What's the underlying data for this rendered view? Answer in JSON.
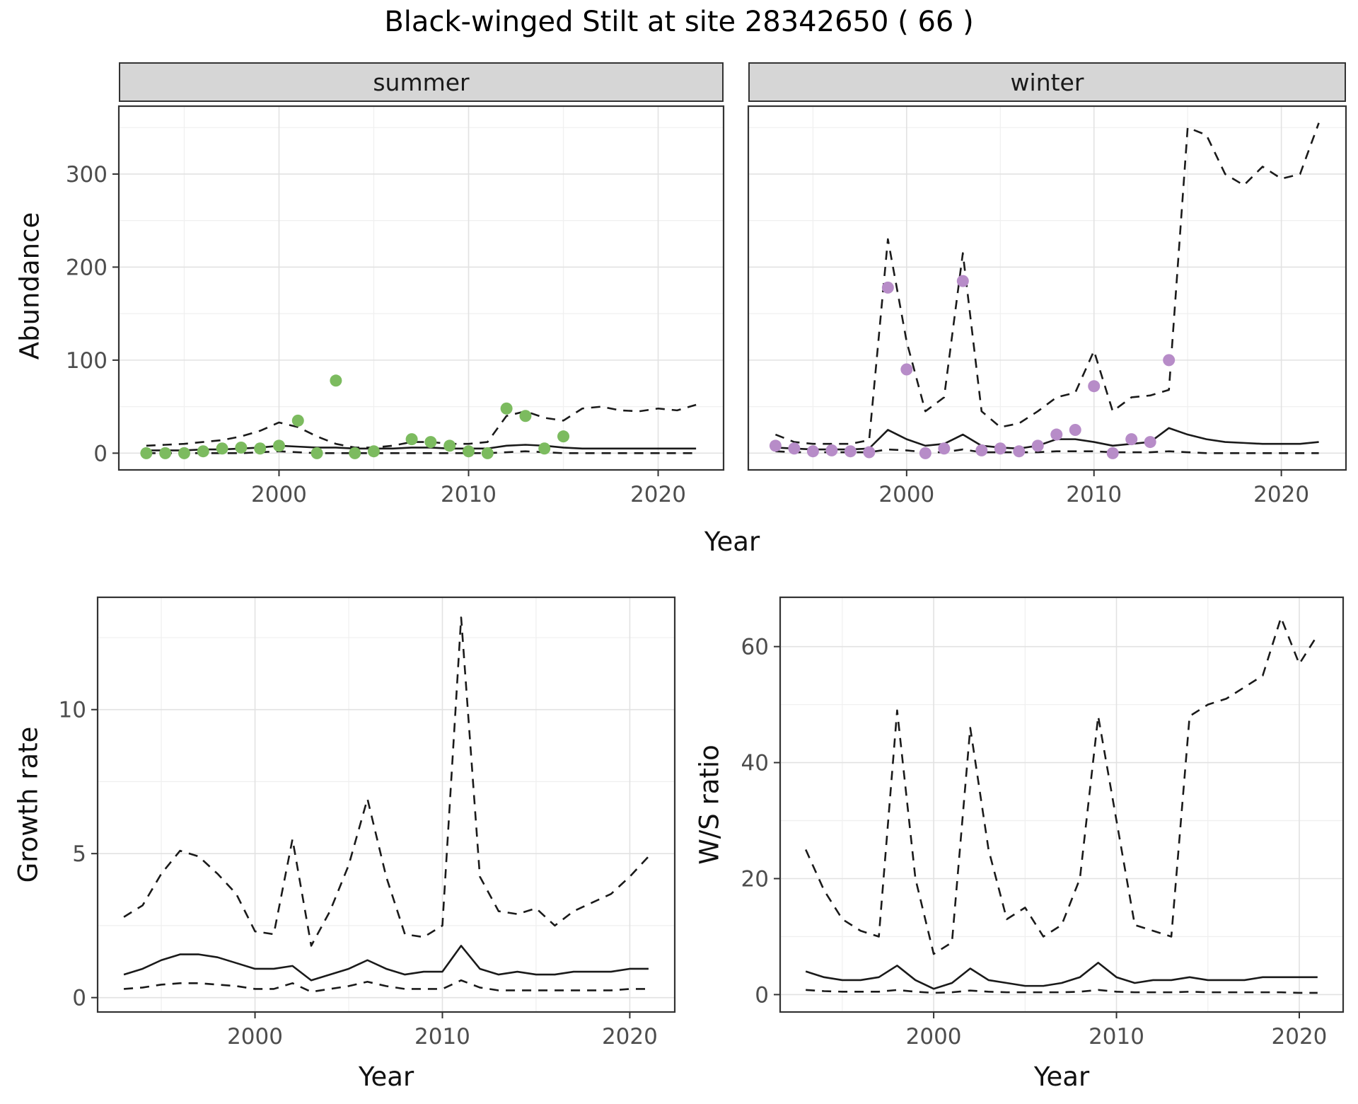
{
  "title": "Black-winged Stilt at site 28342650 ( 66 )",
  "colors": {
    "summer_point": "#7CBB5F",
    "winter_point": "#B78CC8",
    "line": "#1a1a1a",
    "grid_major": "#e2e2e2",
    "grid_minor": "#f0f0f0",
    "panel_border": "#333333",
    "tick_text": "#4d4d4d",
    "strip_bg": "#d6d6d6"
  },
  "chart_data": [
    {
      "id": "summer",
      "type": "line",
      "facet_label": "summer",
      "xlabel": "Year",
      "ylabel": "Abundance",
      "x_range": [
        1991.55,
        2023.45
      ],
      "y_range": [
        -18,
        373
      ],
      "x_ticks": [
        2000,
        2010,
        2020
      ],
      "x_minor": [
        1995,
        2005,
        2015
      ],
      "y_ticks": [
        0,
        100,
        200,
        300
      ],
      "y_minor": [
        50,
        150,
        250,
        350
      ],
      "show_y_tick_labels": true,
      "years": [
        1993,
        1994,
        1995,
        1996,
        1997,
        1998,
        1999,
        2000,
        2001,
        2002,
        2003,
        2004,
        2005,
        2006,
        2007,
        2008,
        2009,
        2010,
        2011,
        2012,
        2013,
        2014,
        2015,
        2016,
        2017,
        2018,
        2019,
        2020,
        2021,
        2022
      ],
      "series": [
        {
          "name": "median",
          "style": "solid",
          "values": [
            3,
            3,
            3,
            4,
            4,
            5,
            6,
            8,
            7,
            6,
            6,
            5,
            5,
            5,
            6,
            6,
            5,
            5,
            5,
            8,
            9,
            8,
            6,
            5,
            5,
            5,
            5,
            5,
            5,
            5
          ]
        },
        {
          "name": "upper95",
          "style": "dashed",
          "values": [
            8,
            9,
            10,
            12,
            14,
            18,
            24,
            33,
            28,
            18,
            10,
            6,
            6,
            8,
            12,
            12,
            10,
            10,
            12,
            40,
            45,
            38,
            35,
            48,
            50,
            46,
            45,
            48,
            46,
            52
          ]
        },
        {
          "name": "lower95",
          "style": "dashed",
          "values": [
            0,
            0,
            0,
            0,
            0,
            0,
            1,
            2,
            1,
            0,
            0,
            0,
            0,
            0,
            0,
            0,
            0,
            0,
            0,
            1,
            2,
            1,
            0,
            0,
            0,
            0,
            0,
            0,
            0,
            0
          ]
        }
      ],
      "points": {
        "color_key": "summer_point",
        "x": [
          1993,
          1994,
          1995,
          1996,
          1997,
          1998,
          1999,
          2000,
          2001,
          2002,
          2003,
          2004,
          2005,
          2007,
          2008,
          2009,
          2010,
          2011,
          2012,
          2013,
          2014,
          2015
        ],
        "y": [
          0,
          0,
          0,
          2,
          5,
          6,
          5,
          8,
          35,
          0,
          78,
          0,
          2,
          15,
          12,
          8,
          2,
          0,
          48,
          40,
          5,
          18
        ]
      }
    },
    {
      "id": "winter",
      "type": "line",
      "facet_label": "winter",
      "xlabel": "Year",
      "ylabel": "Abundance",
      "x_range": [
        1991.55,
        2023.45
      ],
      "y_range": [
        -18,
        373
      ],
      "x_ticks": [
        2000,
        2010,
        2020
      ],
      "x_minor": [
        1995,
        2005,
        2015
      ],
      "y_ticks": [
        0,
        100,
        200,
        300
      ],
      "y_minor": [
        50,
        150,
        250,
        350
      ],
      "show_y_tick_labels": false,
      "years": [
        1993,
        1994,
        1995,
        1996,
        1997,
        1998,
        1999,
        2000,
        2001,
        2002,
        2003,
        2004,
        2005,
        2006,
        2007,
        2008,
        2009,
        2010,
        2011,
        2012,
        2013,
        2014,
        2015,
        2016,
        2017,
        2018,
        2019,
        2020,
        2021,
        2022
      ],
      "series": [
        {
          "name": "median",
          "style": "solid",
          "values": [
            6,
            5,
            4,
            4,
            4,
            5,
            25,
            15,
            8,
            10,
            20,
            8,
            6,
            5,
            8,
            15,
            15,
            12,
            8,
            10,
            12,
            27,
            20,
            15,
            12,
            11,
            10,
            10,
            10,
            12
          ]
        },
        {
          "name": "upper95",
          "style": "dashed",
          "values": [
            20,
            12,
            10,
            10,
            10,
            14,
            230,
            120,
            45,
            60,
            215,
            45,
            28,
            32,
            45,
            60,
            65,
            110,
            45,
            60,
            62,
            68,
            350,
            342,
            300,
            288,
            308,
            295,
            300,
            355
          ]
        },
        {
          "name": "lower95",
          "style": "dashed",
          "values": [
            2,
            1,
            1,
            1,
            1,
            1,
            4,
            3,
            1,
            1,
            4,
            1,
            1,
            1,
            1,
            2,
            2,
            2,
            1,
            1,
            1,
            2,
            1,
            0,
            0,
            0,
            0,
            0,
            0,
            0
          ]
        }
      ],
      "points": {
        "color_key": "winter_point",
        "x": [
          1993,
          1994,
          1995,
          1996,
          1997,
          1998,
          1999,
          2000,
          2001,
          2002,
          2003,
          2004,
          2005,
          2006,
          2007,
          2008,
          2009,
          2010,
          2011,
          2012,
          2013,
          2014
        ],
        "y": [
          8,
          5,
          2,
          3,
          2,
          1,
          178,
          90,
          0,
          5,
          185,
          3,
          5,
          2,
          8,
          20,
          25,
          72,
          0,
          15,
          12,
          100
        ]
      }
    },
    {
      "id": "growth",
      "type": "line",
      "facet_label": "",
      "xlabel": "Year",
      "ylabel": "Growth rate",
      "x_range": [
        1991.6,
        2022.4
      ],
      "y_range": [
        -0.5,
        13.9
      ],
      "x_ticks": [
        2000,
        2010,
        2020
      ],
      "x_minor": [
        1995,
        2005,
        2015
      ],
      "y_ticks": [
        0,
        5,
        10
      ],
      "y_minor": [
        2.5,
        7.5,
        12.5
      ],
      "show_y_tick_labels": true,
      "years": [
        1993,
        1994,
        1995,
        1996,
        1997,
        1998,
        1999,
        2000,
        2001,
        2002,
        2003,
        2004,
        2005,
        2006,
        2007,
        2008,
        2009,
        2010,
        2011,
        2012,
        2013,
        2014,
        2015,
        2016,
        2017,
        2018,
        2019,
        2020,
        2021
      ],
      "series": [
        {
          "name": "median",
          "style": "solid",
          "values": [
            0.8,
            1.0,
            1.3,
            1.5,
            1.5,
            1.4,
            1.2,
            1.0,
            1.0,
            1.1,
            0.6,
            0.8,
            1.0,
            1.3,
            1.0,
            0.8,
            0.9,
            0.9,
            1.8,
            1.0,
            0.8,
            0.9,
            0.8,
            0.8,
            0.9,
            0.9,
            0.9,
            1.0,
            1.0
          ]
        },
        {
          "name": "upper95",
          "style": "dashed",
          "values": [
            2.8,
            3.2,
            4.3,
            5.1,
            4.9,
            4.3,
            3.6,
            2.3,
            2.2,
            5.5,
            1.8,
            3.0,
            4.6,
            6.9,
            4.2,
            2.2,
            2.1,
            2.5,
            13.2,
            4.2,
            3.0,
            2.9,
            3.1,
            2.5,
            3.0,
            3.3,
            3.6,
            4.2,
            4.9
          ]
        },
        {
          "name": "lower95",
          "style": "dashed",
          "values": [
            0.3,
            0.35,
            0.45,
            0.5,
            0.5,
            0.45,
            0.4,
            0.3,
            0.3,
            0.5,
            0.2,
            0.3,
            0.4,
            0.55,
            0.4,
            0.3,
            0.3,
            0.3,
            0.6,
            0.35,
            0.25,
            0.25,
            0.25,
            0.25,
            0.25,
            0.25,
            0.25,
            0.3,
            0.3
          ]
        }
      ],
      "points": null
    },
    {
      "id": "ws",
      "type": "line",
      "facet_label": "",
      "xlabel": "Year",
      "ylabel": "W/S ratio",
      "x_range": [
        1991.6,
        2022.4
      ],
      "y_range": [
        -3,
        68.5
      ],
      "x_ticks": [
        2000,
        2010,
        2020
      ],
      "x_minor": [
        1995,
        2005,
        2015
      ],
      "y_ticks": [
        0,
        20,
        40,
        60
      ],
      "y_minor": [
        10,
        30,
        50
      ],
      "show_y_tick_labels": true,
      "years": [
        1993,
        1994,
        1995,
        1996,
        1997,
        1998,
        1999,
        2000,
        2001,
        2002,
        2003,
        2004,
        2005,
        2006,
        2007,
        2008,
        2009,
        2010,
        2011,
        2012,
        2013,
        2014,
        2015,
        2016,
        2017,
        2018,
        2019,
        2020,
        2021
      ],
      "series": [
        {
          "name": "median",
          "style": "solid",
          "values": [
            4,
            3,
            2.5,
            2.5,
            3,
            5,
            2.5,
            1,
            2,
            4.5,
            2.5,
            2,
            1.5,
            1.5,
            2,
            3,
            5.5,
            3,
            2,
            2.5,
            2.5,
            3,
            2.5,
            2.5,
            2.5,
            3,
            3,
            3,
            3
          ]
        },
        {
          "name": "upper95",
          "style": "dashed",
          "values": [
            25,
            18,
            13,
            11,
            10,
            49,
            20,
            7,
            9,
            46,
            25,
            13,
            15,
            10,
            12,
            20,
            48,
            30,
            12,
            11,
            10,
            48,
            50,
            51,
            53,
            55,
            65,
            57,
            62
          ]
        },
        {
          "name": "lower95",
          "style": "dashed",
          "values": [
            0.8,
            0.6,
            0.5,
            0.5,
            0.5,
            0.8,
            0.5,
            0.3,
            0.4,
            0.7,
            0.5,
            0.4,
            0.4,
            0.4,
            0.4,
            0.5,
            0.8,
            0.5,
            0.4,
            0.4,
            0.4,
            0.5,
            0.4,
            0.4,
            0.4,
            0.4,
            0.4,
            0.3,
            0.3
          ]
        }
      ],
      "points": null
    }
  ]
}
